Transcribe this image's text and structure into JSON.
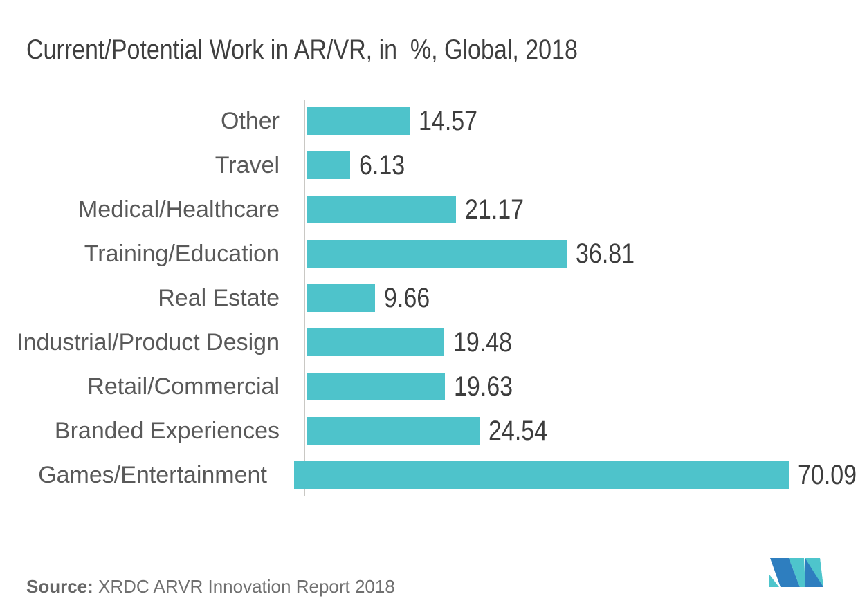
{
  "title": "Current/Potential Work in AR/VR, in  %, Global, 2018",
  "chart_data": {
    "type": "bar",
    "orientation": "horizontal",
    "title": "Current/Potential Work in AR/VR, in  %, Global, 2018",
    "categories": [
      "Other",
      "Travel",
      "Medical/Healthcare",
      "Training/Education",
      "Real Estate",
      "Industrial/Product Design",
      "Retail/Commercial",
      "Branded Experiences",
      "Games/Entertainment"
    ],
    "values": [
      14.57,
      6.13,
      21.17,
      36.81,
      9.66,
      19.48,
      19.63,
      24.54,
      70.09
    ],
    "value_labels": [
      "14.57",
      "6.13",
      "21.17",
      "36.81",
      "9.66",
      "19.48",
      "19.63",
      "24.54",
      "70.09"
    ],
    "unit": "%",
    "xlabel": "",
    "ylabel": "",
    "xlim": [
      0,
      75
    ],
    "grid": false,
    "legend": false,
    "bar_color": "#4EC3CB",
    "data_labels_position": "outside-end"
  },
  "source": {
    "label": "Source:",
    "text": " XRDC ARVR Innovation Report 2018"
  },
  "colors": {
    "background": "#FFFFFF",
    "bar": "#4EC3CB",
    "title_text": "#3F3F3F",
    "category_text": "#595959",
    "value_text": "#3D3D3D",
    "axis_line": "#C9C8C4",
    "source_text": "#6F6F6F",
    "logo_teal": "#4EC5CC",
    "logo_blue": "#2E7EBF"
  },
  "logo": {
    "name": "mordor-intelligence-logo"
  }
}
